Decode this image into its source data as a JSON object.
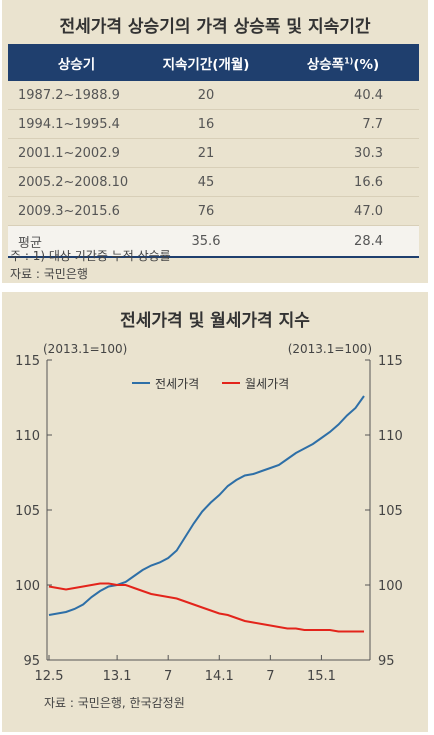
{
  "table": {
    "title": "전세가격 상승기의 가격 상승폭 및 지속기간",
    "headers": [
      "상승기",
      "지속기간(개월)",
      "상승폭",
      "1)",
      "(%)"
    ],
    "rows": [
      {
        "period": "1987.2~1988.9",
        "months": "20",
        "rise": "40.4"
      },
      {
        "period": "1994.1~1995.4",
        "months": "16",
        "rise": "7.7"
      },
      {
        "period": "2001.1~2002.9",
        "months": "21",
        "rise": "30.3"
      },
      {
        "period": "2005.2~2008.10",
        "months": "45",
        "rise": "16.6"
      },
      {
        "period": "2009.3~2015.6",
        "months": "76",
        "rise": "47.0"
      }
    ],
    "average": {
      "label": "평균",
      "months": "35.6",
      "rise": "28.4"
    },
    "note": "주 : 1) 대상 기간중 누적 상승률",
    "source": "자료 : 국민은행"
  },
  "chart": {
    "title": "전세가격 및 월세가격 지수",
    "source": "자료 : 국민은행, 한국감정원"
  },
  "chart_data": {
    "type": "line",
    "x_tick_labels": [
      "12.5",
      "13.1",
      "7",
      "14.1",
      "7",
      "15.1"
    ],
    "y_left": {
      "ticks": [
        95,
        100,
        105,
        110,
        115
      ],
      "range": [
        95,
        115
      ],
      "label": "(2013.1=100)"
    },
    "y_right": {
      "ticks": [
        95,
        100,
        105,
        110,
        115
      ],
      "range": [
        95,
        115
      ],
      "label": "(2013.1=100)"
    },
    "legend_position": "top-center",
    "grid": false,
    "colors": {
      "jeonse": "#2e6fa7",
      "wolse": "#e3241b"
    },
    "x": [
      "2012.5",
      "2012.6",
      "2012.7",
      "2012.8",
      "2012.9",
      "2012.10",
      "2012.11",
      "2012.12",
      "2013.1",
      "2013.2",
      "2013.3",
      "2013.4",
      "2013.5",
      "2013.6",
      "2013.7",
      "2013.8",
      "2013.9",
      "2013.10",
      "2013.11",
      "2013.12",
      "2014.1",
      "2014.2",
      "2014.3",
      "2014.4",
      "2014.5",
      "2014.6",
      "2014.7",
      "2014.8",
      "2014.9",
      "2014.10",
      "2014.11",
      "2014.12",
      "2015.1",
      "2015.2",
      "2015.3",
      "2015.4",
      "2015.5",
      "2015.6"
    ],
    "series": [
      {
        "name": "전세가격",
        "values": [
          98.0,
          98.1,
          98.2,
          98.4,
          98.7,
          99.2,
          99.6,
          99.9,
          100.0,
          100.2,
          100.6,
          101.0,
          101.3,
          101.5,
          101.8,
          102.3,
          103.2,
          104.1,
          104.9,
          105.5,
          106.0,
          106.6,
          107.0,
          107.3,
          107.4,
          107.6,
          107.8,
          108.0,
          108.4,
          108.8,
          109.1,
          109.4,
          109.8,
          110.2,
          110.7,
          111.3,
          111.8,
          112.6
        ]
      },
      {
        "name": "월세가격",
        "values": [
          99.9,
          99.8,
          99.7,
          99.8,
          99.9,
          100.0,
          100.1,
          100.1,
          100.0,
          100.0,
          99.8,
          99.6,
          99.4,
          99.3,
          99.2,
          99.1,
          98.9,
          98.7,
          98.5,
          98.3,
          98.1,
          98.0,
          97.8,
          97.6,
          97.5,
          97.4,
          97.3,
          97.2,
          97.1,
          97.1,
          97.0,
          97.0,
          97.0,
          97.0,
          96.9,
          96.9,
          96.9,
          96.9
        ]
      }
    ]
  }
}
